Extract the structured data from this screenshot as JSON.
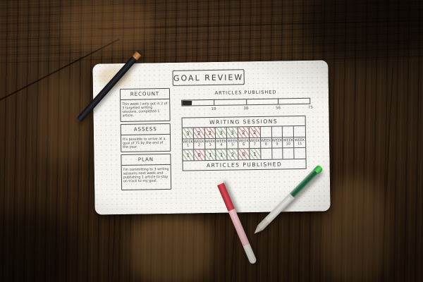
{
  "journal": {
    "title": "GOAL REVIEW",
    "sections": [
      {
        "label": "RECOUNT",
        "text": "This week I only got in 2 of 3 targeted writing sessions, completed 1 article."
      },
      {
        "label": "ASSESS",
        "text": "It's possible to arrive at a goal of 75 by the end of the year."
      },
      {
        "label": "PLAN",
        "text": "I'm committing to 3 writing sessions next week and publishing 1 article to stay on track to my goal."
      }
    ],
    "progress_bar": {
      "label": "ARTICLES PUBLISHED",
      "fill_percent": 8,
      "tick_labels": [
        "19",
        "38",
        "56",
        "75"
      ],
      "tick_positions_percent": [
        25,
        50,
        75,
        100
      ]
    },
    "tracker": {
      "header": "WRITING SESSIONS",
      "footer": "ARTICLES PUBLISHED",
      "week_word": "WEEK",
      "week_numbers": [
        "1",
        "2",
        "3",
        "4",
        "5",
        "6",
        "7",
        "8",
        "9",
        "10",
        "11"
      ],
      "sessions": [
        {
          "v": "3",
          "s": "met"
        },
        {
          "v": "2",
          "s": "miss"
        },
        {
          "v": "2",
          "s": "miss"
        },
        {
          "v": "3",
          "s": "met"
        },
        {
          "v": "3",
          "s": "met"
        },
        {
          "v": "2",
          "s": "miss"
        },
        {
          "v": "2",
          "s": "miss"
        },
        {
          "v": "",
          "s": ""
        },
        {
          "v": "",
          "s": ""
        },
        {
          "v": "",
          "s": ""
        },
        {
          "v": "",
          "s": ""
        }
      ],
      "articles": [
        {
          "v": "1",
          "s": "met"
        },
        {
          "v": "0",
          "s": "miss"
        },
        {
          "v": "1",
          "s": "met"
        },
        {
          "v": "1",
          "s": "met"
        },
        {
          "v": "2",
          "s": "met"
        },
        {
          "v": "0",
          "s": "miss"
        },
        {
          "v": "1",
          "s": "met"
        },
        {
          "v": "",
          "s": ""
        },
        {
          "v": "",
          "s": ""
        },
        {
          "v": "",
          "s": ""
        },
        {
          "v": "",
          "s": ""
        }
      ]
    }
  },
  "objects": {
    "surface": "dark wooden table",
    "paper": "dot-grid journal page",
    "black_pen": "black rollerball pen with copper tip",
    "red_pen": "clear gel pen with red ink",
    "green_pen": "clear gel pen with green ink"
  },
  "colors": {
    "paper": "#f5f3ee",
    "ink": "#3b3b3b",
    "met_green": "#769c68",
    "miss_red": "#c66060",
    "wood": "#3a2817",
    "copper": "#cf9159",
    "red_ink": "#d84b55",
    "green_ink": "#266140"
  }
}
